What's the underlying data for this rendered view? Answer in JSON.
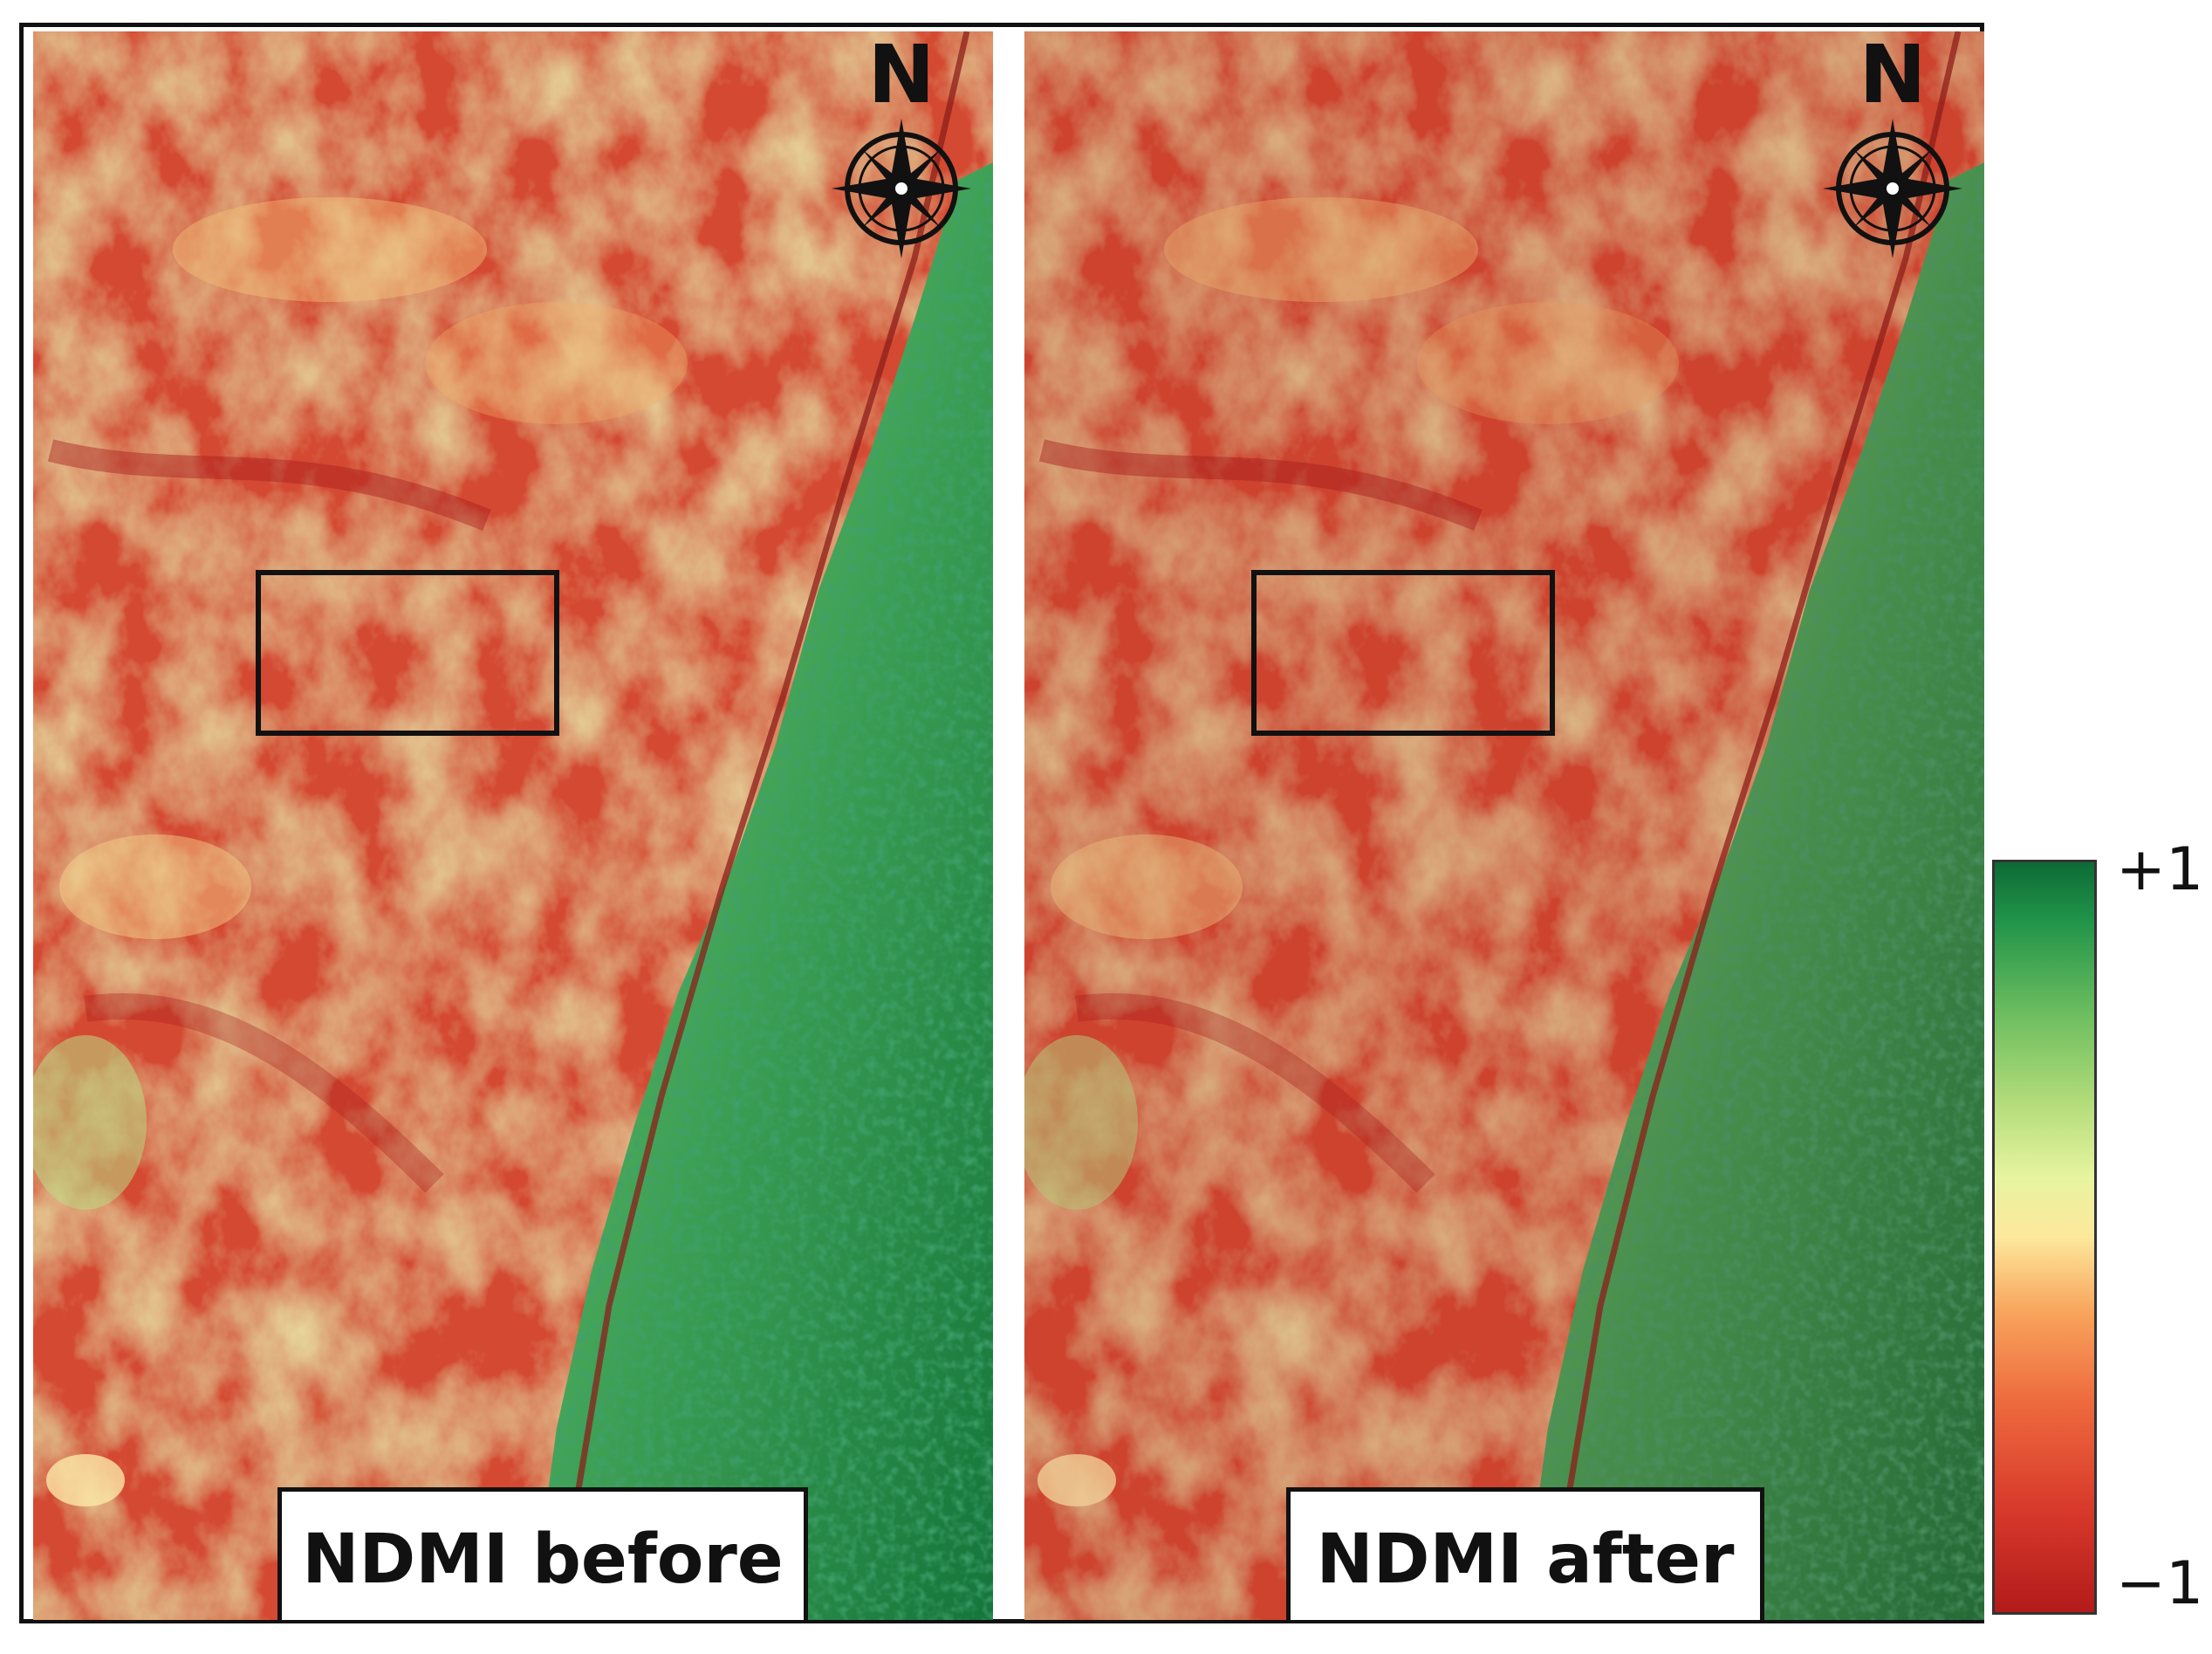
{
  "panels": [
    {
      "label": "NDMI before",
      "north_label": "N"
    },
    {
      "label": "NDMI after",
      "north_label": "N"
    }
  ],
  "legend": {
    "max_label": "+1",
    "min_label": "−1",
    "colors": [
      "#b31b1b",
      "#ee6a3e",
      "#fde89c",
      "#6bbd5f",
      "#0c6b35"
    ]
  },
  "icons": {
    "north": "compass-rose-icon"
  }
}
